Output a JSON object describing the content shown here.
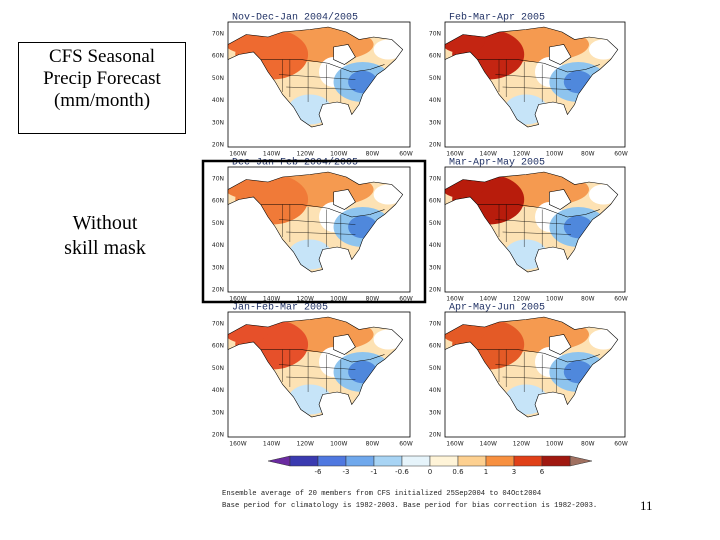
{
  "slide": {
    "title_box": {
      "lines": [
        "CFS Seasonal",
        "Precip Forecast",
        "(mm/month)"
      ]
    },
    "note": {
      "lines": [
        "Without",
        "skill mask"
      ]
    },
    "panels": [
      {
        "title": "Nov-Dec-Jan 2004/2005"
      },
      {
        "title": "Feb-Mar-Apr 2005"
      },
      {
        "title": "Dec-Jan-Feb 2004/2005"
      },
      {
        "title": "Mar-Apr-May 2005"
      },
      {
        "title": "Jan-Feb-Mar 2005"
      },
      {
        "title": "Apr-May-Jun 2005"
      }
    ],
    "lat_labels": [
      "70N",
      "60N",
      "50N",
      "40N",
      "30N",
      "20N"
    ],
    "lon_labels": [
      "160W",
      "140W",
      "120W",
      "100W",
      "80W",
      "60W"
    ],
    "colorbar": {
      "labels": [
        "-6",
        "-3",
        "-1",
        "-0.6",
        "0",
        "0.6",
        "1",
        "3",
        "6"
      ]
    },
    "footer": [
      "Ensemble average of 20 members from CFS initialized 25Sep2004 to 04Oct2004",
      "Base period for climatology is 1982-2003. Base period for bias correction is 1982-2003."
    ],
    "page_number": "11"
  }
}
